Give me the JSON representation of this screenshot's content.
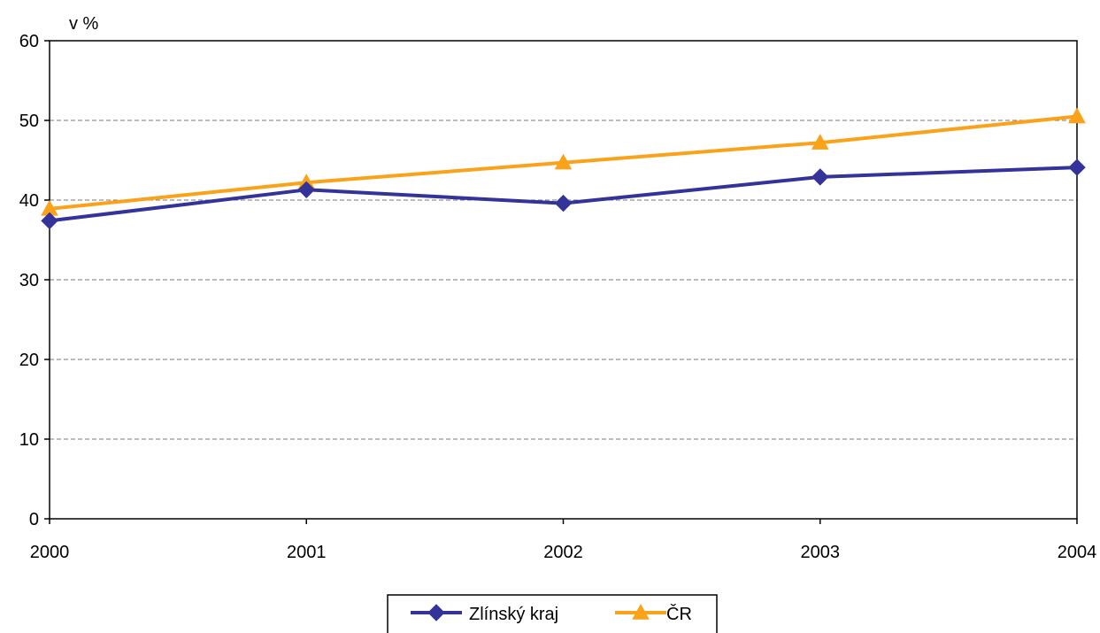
{
  "chart_data": {
    "type": "line",
    "y_unit_label": "v %",
    "categories": [
      "2000",
      "2001",
      "2002",
      "2003",
      "2004"
    ],
    "ylim": [
      0,
      60
    ],
    "yticks": [
      0,
      10,
      20,
      30,
      40,
      50,
      60
    ],
    "grid": "horizontal dashed",
    "legend_position": "bottom",
    "series": [
      {
        "name": "Zlínský kraj",
        "color": "#333399",
        "marker": "diamond",
        "values": [
          37.4,
          41.3,
          39.6,
          42.9,
          44.1
        ]
      },
      {
        "name": "ČR",
        "color": "#F9A21A",
        "marker": "triangle",
        "values": [
          38.9,
          42.2,
          44.7,
          47.2,
          50.5
        ]
      }
    ]
  }
}
